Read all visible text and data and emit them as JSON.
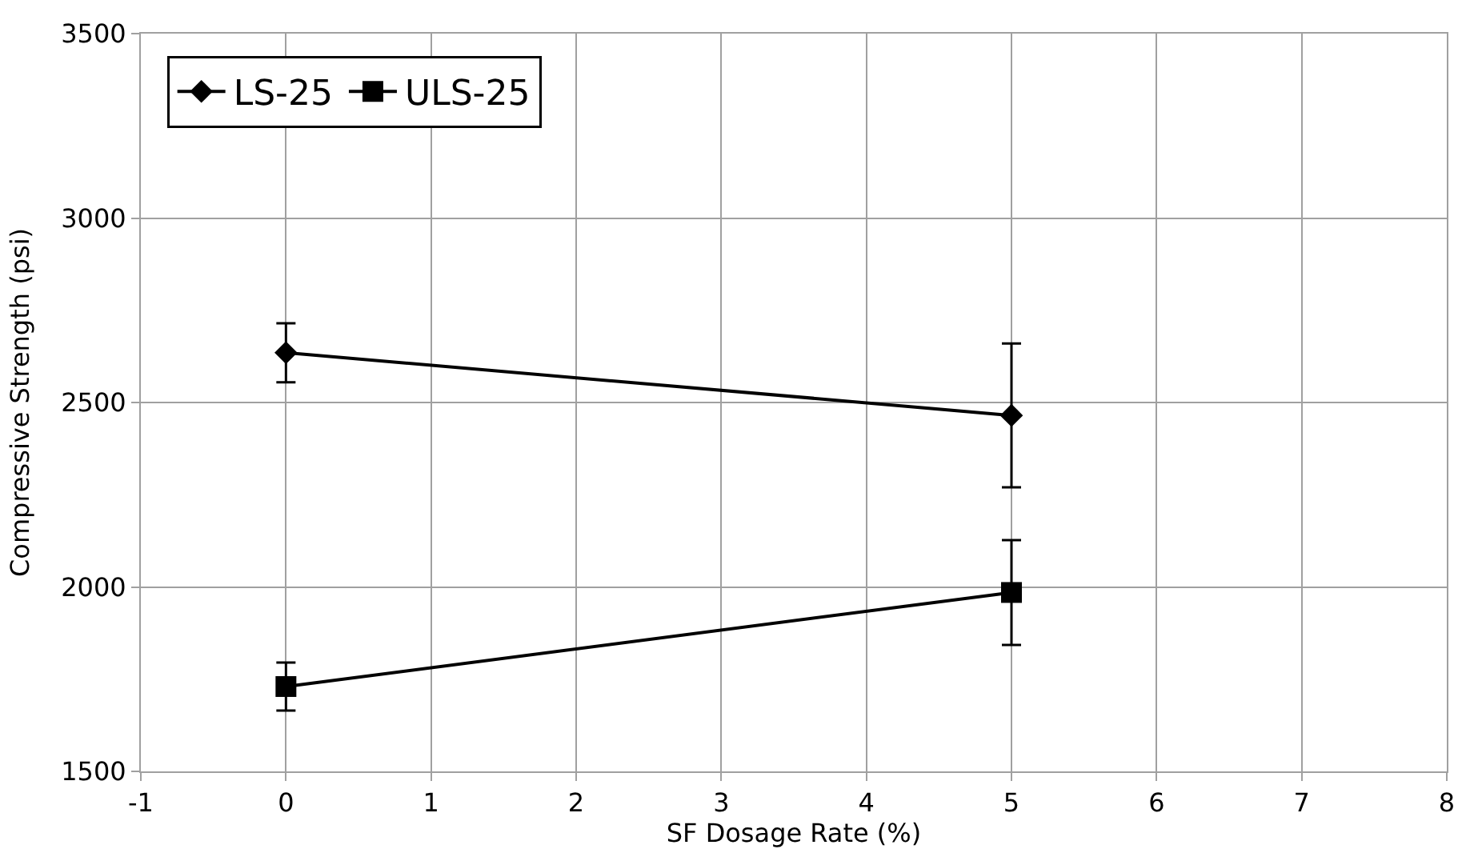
{
  "chart_data": {
    "type": "line",
    "xlabel": "SF Dosage Rate (%)",
    "ylabel": "Compressive Strength (psi)",
    "x": [
      0,
      5
    ],
    "series": [
      {
        "name": "LS-25",
        "color": "#000000",
        "marker": "diamond",
        "values": [
          2635,
          2465
        ],
        "errors": [
          80,
          195
        ]
      },
      {
        "name": "ULS-25",
        "color": "#000000",
        "marker": "square",
        "values": [
          1730,
          1985
        ],
        "errors": [
          65,
          142
        ]
      }
    ],
    "xlim": [
      -1,
      8
    ],
    "xticks": [
      -1,
      0,
      1,
      2,
      3,
      4,
      5,
      6,
      7,
      8
    ],
    "ylim": [
      1500,
      3500
    ],
    "yticks": [
      1500,
      2000,
      2500,
      3000,
      3500
    ],
    "grid": true,
    "legend": "top left",
    "line_style": "solid"
  }
}
